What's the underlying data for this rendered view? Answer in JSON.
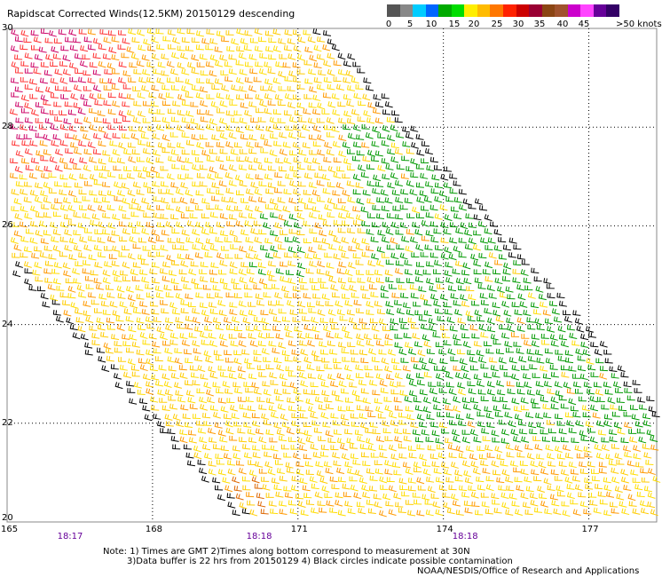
{
  "title": "Rapidscat Corrected Winds(12.5KM) 20150129 descending",
  "legend": {
    "labels": [
      "0",
      "5",
      "10",
      "15",
      "20",
      "25",
      "30",
      "35",
      "40",
      "45",
      ">50 knots"
    ],
    "colors": [
      "#555555",
      "#888888",
      "#00ccff",
      "#0066ff",
      "#00aa00",
      "#00dd00",
      "#ffee00",
      "#ffbb00",
      "#ff7700",
      "#ff2200",
      "#cc0000",
      "#990033",
      "#8b4513",
      "#a0522d",
      "#cc00cc",
      "#ff44ff",
      "#660099",
      "#330066"
    ]
  },
  "axes": {
    "lat_labels": [
      "30",
      "28",
      "26",
      "24",
      "22",
      "20"
    ],
    "lon_labels": [
      "165",
      "168",
      "171",
      "174",
      "177"
    ]
  },
  "times": [
    "18:17",
    "18:18",
    "18:18"
  ],
  "notes": {
    "line1": "Note: 1) Times are GMT 2)Times along bottom correspond to measurement at 30N",
    "line2": "3)Data buffer is 22 hrs from 20150129 4) Black circles indicate possible contamination",
    "line3": "NOAA/NESDIS/Office of Research and Applications"
  },
  "chart_data": {
    "type": "wind-barb field",
    "title": "Rapidscat Corrected Winds(12.5KM) 20150129 descending",
    "xlabel": "",
    "ylabel": "",
    "xlim": [
      165,
      178.4
    ],
    "ylim": [
      20,
      30
    ],
    "x_ticks": [
      165,
      168,
      171,
      174,
      177
    ],
    "y_ticks": [
      30,
      28,
      26,
      24,
      22,
      20
    ],
    "grid": "dotted",
    "wind_speed_scale_knots": [
      0,
      5,
      10,
      15,
      20,
      25,
      30,
      35,
      40,
      45,
      50
    ],
    "regions": [
      {
        "description": "green 15-20 kt",
        "lon": [
          172.5,
          178.0
        ],
        "lat": [
          22.5,
          28.2
        ]
      },
      {
        "description": "red/magenta 30-40 kt",
        "lon": [
          165.0,
          167.3
        ],
        "lat": [
          27.5,
          30.0
        ]
      },
      {
        "description": "yellow 20-25 kt",
        "lon": [
          165.5,
          178.0
        ],
        "lat": [
          20.0,
          29.5
        ]
      },
      {
        "description": "orange 25-30 kt",
        "lon": [
          168.0,
          170.5
        ],
        "lat": [
          20.0,
          21.5
        ]
      }
    ]
  }
}
